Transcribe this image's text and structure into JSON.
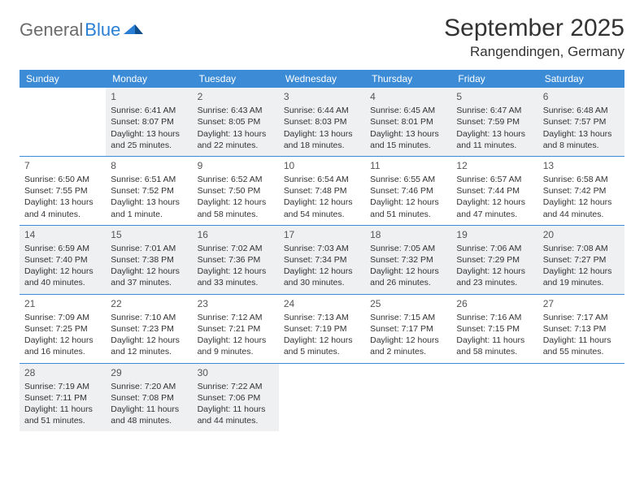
{
  "brand": {
    "part1": "General",
    "part2": "Blue"
  },
  "title": "September 2025",
  "location": "Rangendingen, Germany",
  "colors": {
    "header_bg": "#3b8bd6",
    "header_text": "#ffffff",
    "shaded_bg": "#eef0f2",
    "rule": "#3b8bd6",
    "logo_gray": "#6b6b6b",
    "logo_blue": "#2a7fd4"
  },
  "dow": [
    "Sunday",
    "Monday",
    "Tuesday",
    "Wednesday",
    "Thursday",
    "Friday",
    "Saturday"
  ],
  "weeks": [
    [
      {
        "n": "",
        "sr": "",
        "ss": "",
        "dl1": "",
        "dl2": "",
        "shaded": false,
        "empty": true
      },
      {
        "n": "1",
        "sr": "Sunrise: 6:41 AM",
        "ss": "Sunset: 8:07 PM",
        "dl1": "Daylight: 13 hours",
        "dl2": "and 25 minutes.",
        "shaded": true
      },
      {
        "n": "2",
        "sr": "Sunrise: 6:43 AM",
        "ss": "Sunset: 8:05 PM",
        "dl1": "Daylight: 13 hours",
        "dl2": "and 22 minutes.",
        "shaded": true
      },
      {
        "n": "3",
        "sr": "Sunrise: 6:44 AM",
        "ss": "Sunset: 8:03 PM",
        "dl1": "Daylight: 13 hours",
        "dl2": "and 18 minutes.",
        "shaded": true
      },
      {
        "n": "4",
        "sr": "Sunrise: 6:45 AM",
        "ss": "Sunset: 8:01 PM",
        "dl1": "Daylight: 13 hours",
        "dl2": "and 15 minutes.",
        "shaded": true
      },
      {
        "n": "5",
        "sr": "Sunrise: 6:47 AM",
        "ss": "Sunset: 7:59 PM",
        "dl1": "Daylight: 13 hours",
        "dl2": "and 11 minutes.",
        "shaded": true
      },
      {
        "n": "6",
        "sr": "Sunrise: 6:48 AM",
        "ss": "Sunset: 7:57 PM",
        "dl1": "Daylight: 13 hours",
        "dl2": "and 8 minutes.",
        "shaded": true
      }
    ],
    [
      {
        "n": "7",
        "sr": "Sunrise: 6:50 AM",
        "ss": "Sunset: 7:55 PM",
        "dl1": "Daylight: 13 hours",
        "dl2": "and 4 minutes.",
        "shaded": false
      },
      {
        "n": "8",
        "sr": "Sunrise: 6:51 AM",
        "ss": "Sunset: 7:52 PM",
        "dl1": "Daylight: 13 hours",
        "dl2": "and 1 minute.",
        "shaded": false
      },
      {
        "n": "9",
        "sr": "Sunrise: 6:52 AM",
        "ss": "Sunset: 7:50 PM",
        "dl1": "Daylight: 12 hours",
        "dl2": "and 58 minutes.",
        "shaded": false
      },
      {
        "n": "10",
        "sr": "Sunrise: 6:54 AM",
        "ss": "Sunset: 7:48 PM",
        "dl1": "Daylight: 12 hours",
        "dl2": "and 54 minutes.",
        "shaded": false
      },
      {
        "n": "11",
        "sr": "Sunrise: 6:55 AM",
        "ss": "Sunset: 7:46 PM",
        "dl1": "Daylight: 12 hours",
        "dl2": "and 51 minutes.",
        "shaded": false
      },
      {
        "n": "12",
        "sr": "Sunrise: 6:57 AM",
        "ss": "Sunset: 7:44 PM",
        "dl1": "Daylight: 12 hours",
        "dl2": "and 47 minutes.",
        "shaded": false
      },
      {
        "n": "13",
        "sr": "Sunrise: 6:58 AM",
        "ss": "Sunset: 7:42 PM",
        "dl1": "Daylight: 12 hours",
        "dl2": "and 44 minutes.",
        "shaded": false
      }
    ],
    [
      {
        "n": "14",
        "sr": "Sunrise: 6:59 AM",
        "ss": "Sunset: 7:40 PM",
        "dl1": "Daylight: 12 hours",
        "dl2": "and 40 minutes.",
        "shaded": true
      },
      {
        "n": "15",
        "sr": "Sunrise: 7:01 AM",
        "ss": "Sunset: 7:38 PM",
        "dl1": "Daylight: 12 hours",
        "dl2": "and 37 minutes.",
        "shaded": true
      },
      {
        "n": "16",
        "sr": "Sunrise: 7:02 AM",
        "ss": "Sunset: 7:36 PM",
        "dl1": "Daylight: 12 hours",
        "dl2": "and 33 minutes.",
        "shaded": true
      },
      {
        "n": "17",
        "sr": "Sunrise: 7:03 AM",
        "ss": "Sunset: 7:34 PM",
        "dl1": "Daylight: 12 hours",
        "dl2": "and 30 minutes.",
        "shaded": true
      },
      {
        "n": "18",
        "sr": "Sunrise: 7:05 AM",
        "ss": "Sunset: 7:32 PM",
        "dl1": "Daylight: 12 hours",
        "dl2": "and 26 minutes.",
        "shaded": true
      },
      {
        "n": "19",
        "sr": "Sunrise: 7:06 AM",
        "ss": "Sunset: 7:29 PM",
        "dl1": "Daylight: 12 hours",
        "dl2": "and 23 minutes.",
        "shaded": true
      },
      {
        "n": "20",
        "sr": "Sunrise: 7:08 AM",
        "ss": "Sunset: 7:27 PM",
        "dl1": "Daylight: 12 hours",
        "dl2": "and 19 minutes.",
        "shaded": true
      }
    ],
    [
      {
        "n": "21",
        "sr": "Sunrise: 7:09 AM",
        "ss": "Sunset: 7:25 PM",
        "dl1": "Daylight: 12 hours",
        "dl2": "and 16 minutes.",
        "shaded": false
      },
      {
        "n": "22",
        "sr": "Sunrise: 7:10 AM",
        "ss": "Sunset: 7:23 PM",
        "dl1": "Daylight: 12 hours",
        "dl2": "and 12 minutes.",
        "shaded": false
      },
      {
        "n": "23",
        "sr": "Sunrise: 7:12 AM",
        "ss": "Sunset: 7:21 PM",
        "dl1": "Daylight: 12 hours",
        "dl2": "and 9 minutes.",
        "shaded": false
      },
      {
        "n": "24",
        "sr": "Sunrise: 7:13 AM",
        "ss": "Sunset: 7:19 PM",
        "dl1": "Daylight: 12 hours",
        "dl2": "and 5 minutes.",
        "shaded": false
      },
      {
        "n": "25",
        "sr": "Sunrise: 7:15 AM",
        "ss": "Sunset: 7:17 PM",
        "dl1": "Daylight: 12 hours",
        "dl2": "and 2 minutes.",
        "shaded": false
      },
      {
        "n": "26",
        "sr": "Sunrise: 7:16 AM",
        "ss": "Sunset: 7:15 PM",
        "dl1": "Daylight: 11 hours",
        "dl2": "and 58 minutes.",
        "shaded": false
      },
      {
        "n": "27",
        "sr": "Sunrise: 7:17 AM",
        "ss": "Sunset: 7:13 PM",
        "dl1": "Daylight: 11 hours",
        "dl2": "and 55 minutes.",
        "shaded": false
      }
    ],
    [
      {
        "n": "28",
        "sr": "Sunrise: 7:19 AM",
        "ss": "Sunset: 7:11 PM",
        "dl1": "Daylight: 11 hours",
        "dl2": "and 51 minutes.",
        "shaded": true
      },
      {
        "n": "29",
        "sr": "Sunrise: 7:20 AM",
        "ss": "Sunset: 7:08 PM",
        "dl1": "Daylight: 11 hours",
        "dl2": "and 48 minutes.",
        "shaded": true
      },
      {
        "n": "30",
        "sr": "Sunrise: 7:22 AM",
        "ss": "Sunset: 7:06 PM",
        "dl1": "Daylight: 11 hours",
        "dl2": "and 44 minutes.",
        "shaded": true
      },
      {
        "n": "",
        "sr": "",
        "ss": "",
        "dl1": "",
        "dl2": "",
        "shaded": false,
        "empty": true
      },
      {
        "n": "",
        "sr": "",
        "ss": "",
        "dl1": "",
        "dl2": "",
        "shaded": false,
        "empty": true
      },
      {
        "n": "",
        "sr": "",
        "ss": "",
        "dl1": "",
        "dl2": "",
        "shaded": false,
        "empty": true
      },
      {
        "n": "",
        "sr": "",
        "ss": "",
        "dl1": "",
        "dl2": "",
        "shaded": false,
        "empty": true
      }
    ]
  ]
}
